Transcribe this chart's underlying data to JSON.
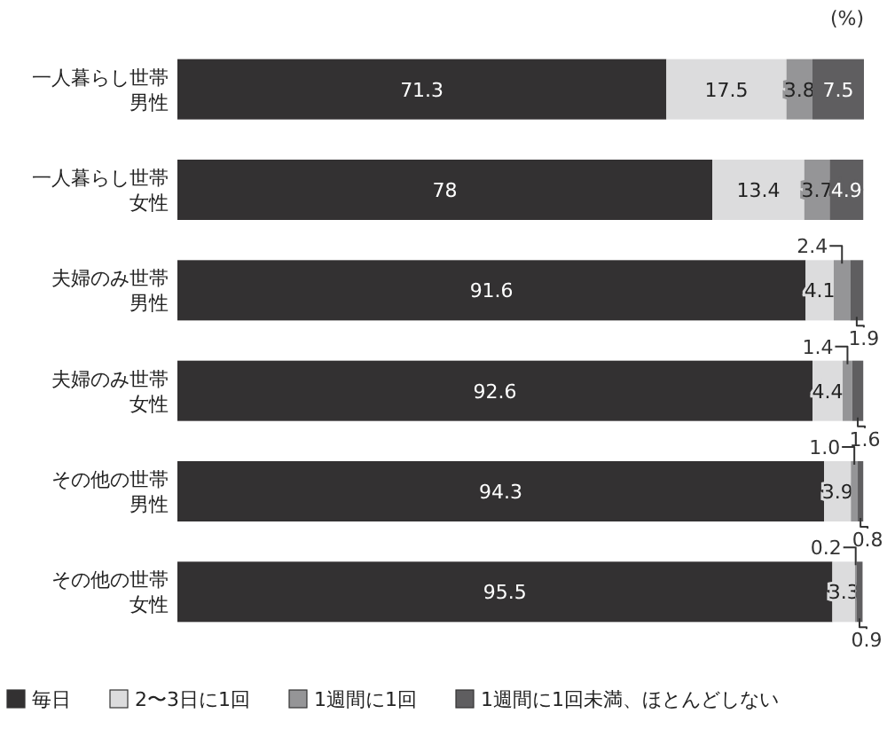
{
  "chart_data": {
    "type": "bar",
    "orientation": "horizontal",
    "stacked": true,
    "data_labels": true,
    "legend": "bottom",
    "categories": [
      "一人暮らし世帯男性",
      "一人暮らし世帯女性",
      "夫婦のみ世帯男性",
      "夫婦のみ世帯女性",
      "その他の世帯男性",
      "その他の世帯女性"
    ],
    "series": [
      {
        "name": "毎日",
        "color": "#333132",
        "values": [
          71.3,
          78,
          91.6,
          92.6,
          94.3,
          95.5
        ],
        "value_labels": [
          "71.3",
          "78",
          "91.6",
          "92.6",
          "94.3",
          "95.5"
        ]
      },
      {
        "name": "2〜3日に1回",
        "color": "#dcdcdd",
        "values": [
          17.5,
          13.4,
          4.1,
          4.4,
          3.9,
          3.3
        ],
        "value_labels": [
          "17.5",
          "13.4",
          "4.1",
          "4.4",
          "3.9",
          "3.3"
        ]
      },
      {
        "name": "1週間に1回",
        "color": "#959597",
        "values": [
          3.8,
          3.7,
          2.4,
          1.4,
          1.0,
          0.2
        ],
        "value_labels": [
          "3.8",
          "3.7",
          "2.4",
          "1.4",
          "1.0",
          "0.2"
        ]
      },
      {
        "name": "1週間に1回未満、ほとんどしない",
        "color": "#5f5e60",
        "values": [
          7.5,
          4.9,
          1.9,
          1.6,
          0.8,
          0.9
        ],
        "value_labels": [
          "7.5",
          "4.9",
          "1.9",
          "1.6",
          "0.8",
          "0.9"
        ]
      }
    ],
    "annotations": [
      "(%)"
    ]
  }
}
